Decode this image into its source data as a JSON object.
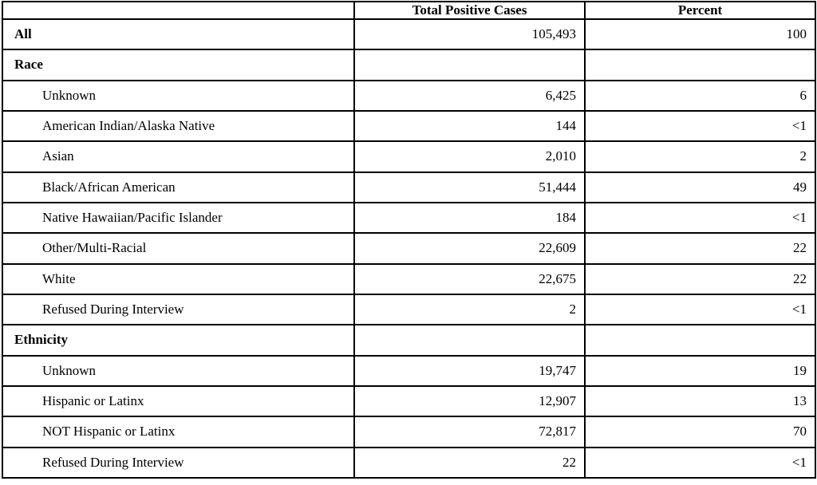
{
  "colors": {
    "border": "#000000",
    "background": "#ffffff",
    "text": "#000000"
  },
  "table": {
    "columns": {
      "label": "",
      "cases": "Total Positive Cases",
      "percent": "Percent"
    },
    "rows": [
      {
        "label": "All",
        "cases": "105,493",
        "percent": "100"
      },
      {
        "label": "Race",
        "cases": "",
        "percent": ""
      },
      {
        "label": "Unknown",
        "cases": "6,425",
        "percent": "6"
      },
      {
        "label": "American Indian/Alaska Native",
        "cases": "144",
        "percent": "<1"
      },
      {
        "label": "Asian",
        "cases": "2,010",
        "percent": "2"
      },
      {
        "label": "Black/African American",
        "cases": "51,444",
        "percent": "49"
      },
      {
        "label": "Native Hawaiian/Pacific Islander",
        "cases": "184",
        "percent": "<1"
      },
      {
        "label": "Other/Multi-Racial",
        "cases": "22,609",
        "percent": "22"
      },
      {
        "label": "White",
        "cases": "22,675",
        "percent": "22"
      },
      {
        "label": "Refused During Interview",
        "cases": "2",
        "percent": "<1"
      },
      {
        "label": "Ethnicity",
        "cases": "",
        "percent": ""
      },
      {
        "label": "Unknown",
        "cases": "19,747",
        "percent": "19"
      },
      {
        "label": "Hispanic or Latinx",
        "cases": "12,907",
        "percent": "13"
      },
      {
        "label": "NOT Hispanic or Latinx",
        "cases": "72,817",
        "percent": "70"
      },
      {
        "label": "Refused During Interview",
        "cases": "22",
        "percent": "<1"
      }
    ]
  }
}
